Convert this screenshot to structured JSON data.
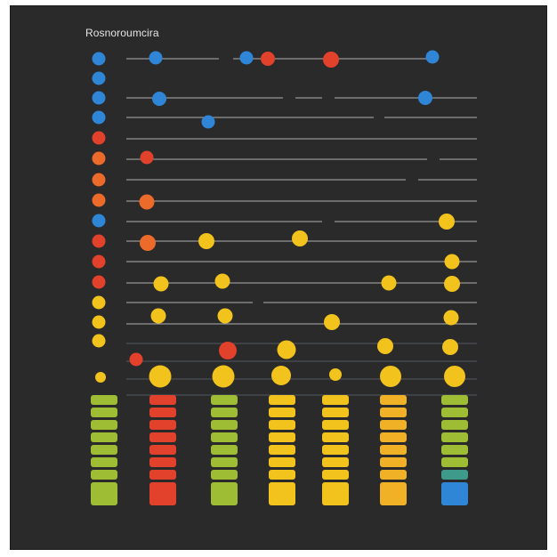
{
  "header": {
    "title": "Rosnoroumcira"
  },
  "theme": {
    "panel": "#2a2a2b",
    "line": "#c8c8c8",
    "blue": "#2f86d6",
    "orange": "#ec6a2a",
    "red": "#e2412b",
    "yellow": "#f2c21d",
    "lime": "#9fbc35",
    "gold": "#f0b126"
  },
  "rows": [
    {
      "dot": "blue"
    },
    {
      "dot": "blue"
    },
    {
      "dot": "blue"
    },
    {
      "dot": "blue"
    },
    {
      "dot": "red"
    },
    {
      "dot": "orange"
    },
    {
      "dot": "orange"
    },
    {
      "dot": "orange"
    },
    {
      "dot": "blue"
    },
    {
      "dot": "red"
    },
    {
      "dot": "red"
    },
    {
      "dot": "red"
    },
    {
      "dot": "yellow"
    },
    {
      "dot": "yellow"
    },
    {
      "dot": "yellow"
    },
    {
      "dot": "yellow"
    }
  ],
  "columns": [
    {
      "name": "column-1",
      "color": "lime"
    },
    {
      "name": "column-2",
      "color": "red"
    },
    {
      "name": "column-3",
      "color": "lime"
    },
    {
      "name": "column-4",
      "color": "yellow"
    },
    {
      "name": "column-5",
      "color": "yellow"
    },
    {
      "name": "column-6",
      "color": "gold"
    },
    {
      "name": "column-7",
      "color": "lime",
      "bottom": "blue"
    }
  ]
}
